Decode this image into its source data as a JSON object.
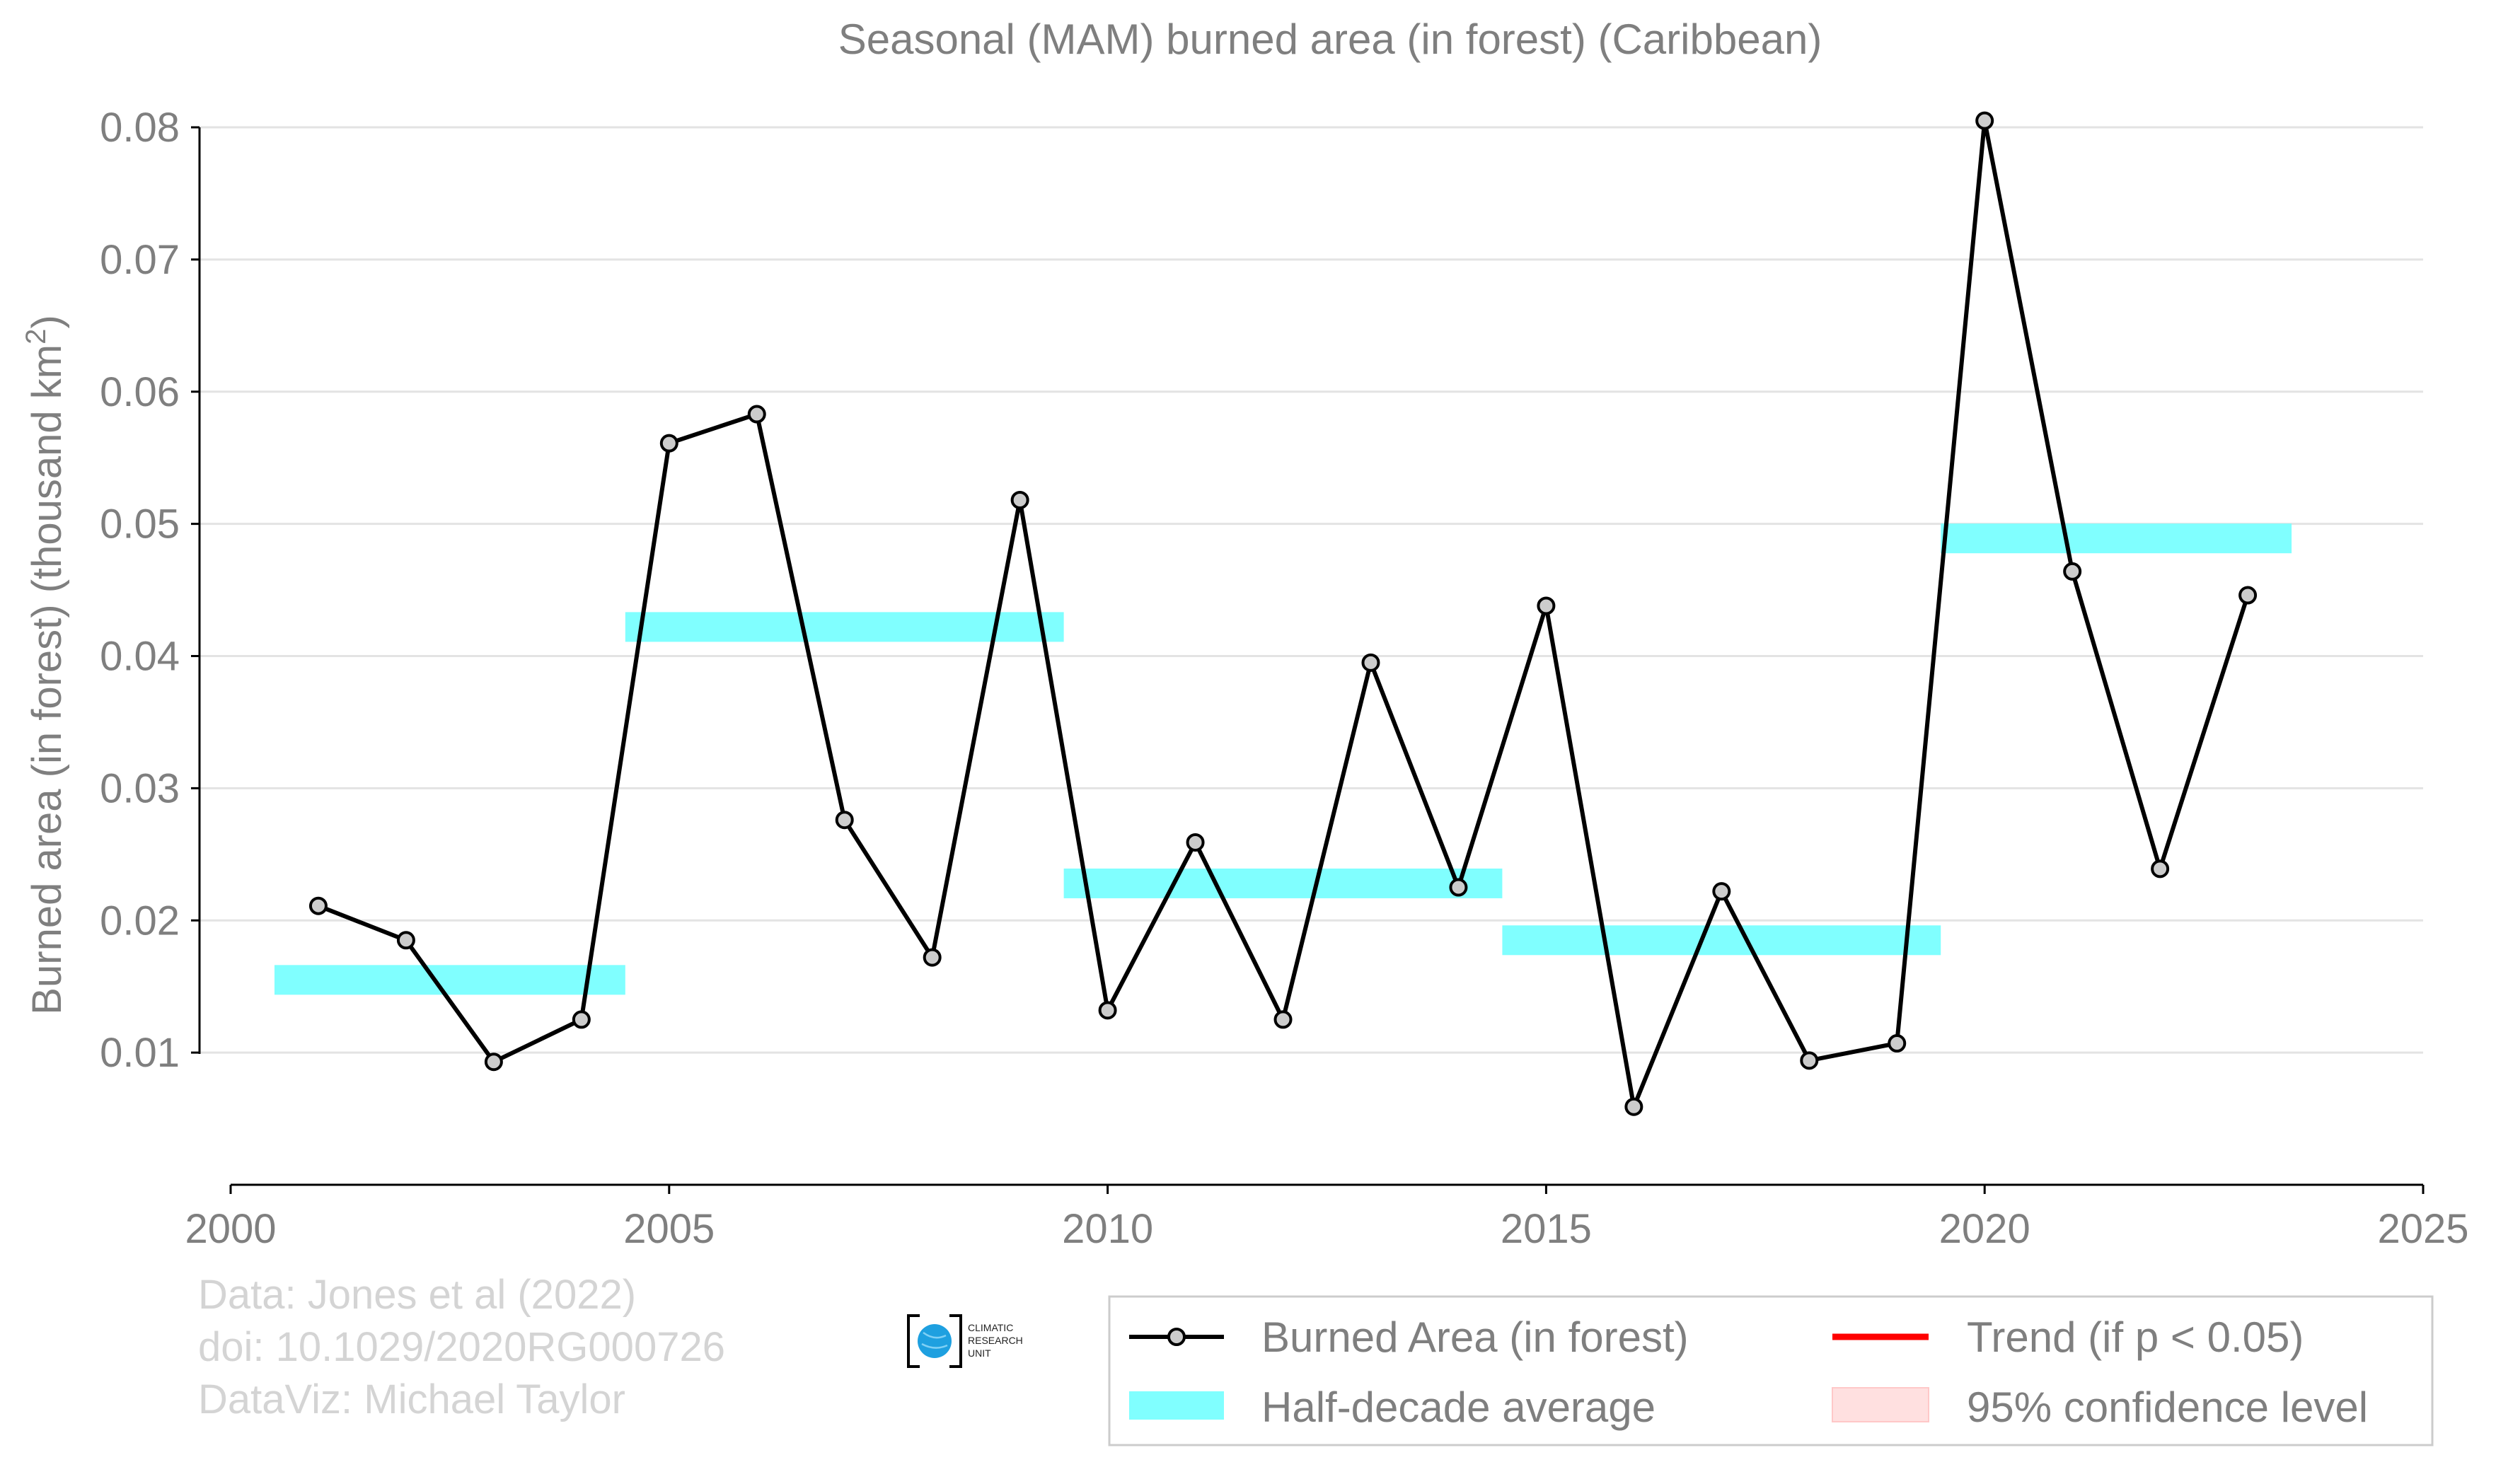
{
  "chart_data": {
    "type": "line",
    "title": "Seasonal (MAM) burned area (in forest) (Caribbean)",
    "ylabel": "Burned area (in forest) (thousand km",
    "ylabel_sup": "2",
    "ylabel_suffix": ")",
    "xlim": [
      2000,
      2025
    ],
    "ylim": [
      0,
      0.08
    ],
    "x_ticks": [
      2000,
      2005,
      2010,
      2015,
      2020,
      2025
    ],
    "x_tick_labels": [
      "2000",
      "2005",
      "2010",
      "2015",
      "2020",
      "2025"
    ],
    "y_ticks": [
      0.01,
      0.02,
      0.03,
      0.04,
      0.05,
      0.06,
      0.07,
      0.08
    ],
    "y_tick_labels": [
      "0.01",
      "0.02",
      "0.03",
      "0.04",
      "0.05",
      "0.06",
      "0.07",
      "0.08"
    ],
    "grid": "horizontal",
    "series": [
      {
        "name": "Burned Area (in forest)",
        "kind": "line-markers",
        "color": "#000000",
        "marker_fill": "#cccccc",
        "x": [
          2001,
          2002,
          2003,
          2004,
          2005,
          2006,
          2007,
          2008,
          2009,
          2010,
          2011,
          2012,
          2013,
          2014,
          2015,
          2016,
          2017,
          2018,
          2019,
          2020,
          2021,
          2022,
          2023
        ],
        "y": [
          0.0211,
          0.0185,
          0.0093,
          0.0125,
          0.0561,
          0.0583,
          0.0276,
          0.0172,
          0.0518,
          0.0132,
          0.0259,
          0.0125,
          0.0395,
          0.0225,
          0.0438,
          0.0059,
          0.0222,
          0.0094,
          0.0107,
          0.0805,
          0.0464,
          0.0239,
          0.0446
        ]
      },
      {
        "name": "Half-decade average",
        "kind": "step-bars",
        "color": "#80ffff",
        "segments": [
          {
            "x0": 2000.5,
            "x1": 2004.5,
            "y": 0.0155
          },
          {
            "x0": 2004.5,
            "x1": 2009.5,
            "y": 0.0422
          },
          {
            "x0": 2009.5,
            "x1": 2014.5,
            "y": 0.0228
          },
          {
            "x0": 2014.5,
            "x1": 2019.5,
            "y": 0.0185
          },
          {
            "x0": 2019.5,
            "x1": 2023.5,
            "y": 0.0489
          }
        ]
      }
    ],
    "legend": {
      "placement": "bottom-right",
      "entries": [
        {
          "label": "Burned Area (in forest)",
          "kind": "line-marker",
          "color": "#000000"
        },
        {
          "label": "Trend (if p < 0.05)",
          "kind": "line",
          "color": "#ff0000"
        },
        {
          "label": "Half-decade average",
          "kind": "patch",
          "color": "#80ffff"
        },
        {
          "label": "95% confidence level",
          "kind": "patch",
          "color": "#ffe0e0"
        }
      ]
    },
    "credits": [
      "Data: Jones et al (2022)",
      "doi: 10.1029/2020RG000726",
      "DataViz: Michael Taylor"
    ],
    "logo": {
      "icon": "globe-icon",
      "lines": [
        "CLIMATIC",
        "RESEARCH",
        "UNIT"
      ],
      "color": "#1ea0e0"
    }
  }
}
